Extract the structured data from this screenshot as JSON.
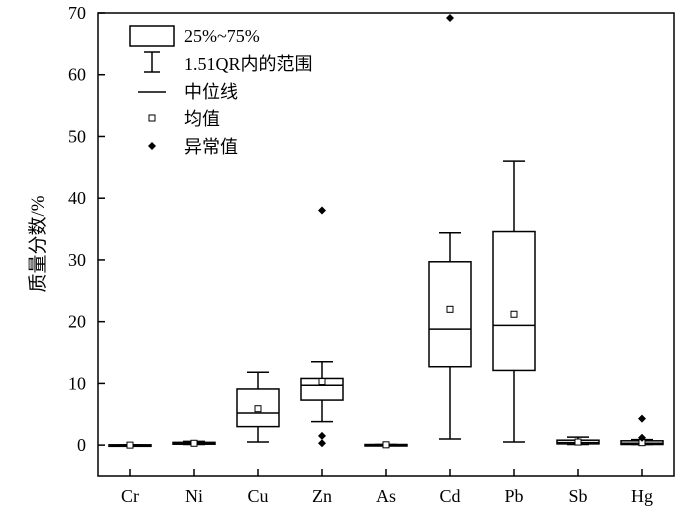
{
  "chart_data": {
    "type": "box",
    "ylabel": "质量分数/%",
    "ylim": [
      -5,
      70
    ],
    "yticks": [
      0,
      10,
      20,
      30,
      40,
      50,
      60,
      70
    ],
    "categories": [
      "Cr",
      "Ni",
      "Cu",
      "Zn",
      "As",
      "Cd",
      "Pb",
      "Sb",
      "Hg"
    ],
    "boxes": [
      {
        "min": 0.0,
        "q1": 0.0,
        "median": 0.0,
        "q3": 0.05,
        "max": 0.05,
        "mean": 0.0,
        "outliers": []
      },
      {
        "min": 0.1,
        "q1": 0.15,
        "median": 0.3,
        "q3": 0.45,
        "max": 0.6,
        "mean": 0.3,
        "outliers": []
      },
      {
        "min": 0.5,
        "q1": 3.0,
        "median": 5.2,
        "q3": 9.1,
        "max": 11.8,
        "mean": 5.9,
        "outliers": []
      },
      {
        "min": 3.8,
        "q1": 7.3,
        "median": 9.7,
        "q3": 10.8,
        "max": 13.5,
        "mean": 10.3,
        "outliers": [
          38.0,
          1.5,
          0.3
        ]
      },
      {
        "min": 0.0,
        "q1": 0.0,
        "median": 0.05,
        "q3": 0.1,
        "max": 0.1,
        "mean": 0.05,
        "outliers": []
      },
      {
        "min": 1.0,
        "q1": 12.7,
        "median": 18.8,
        "q3": 29.7,
        "max": 34.4,
        "mean": 22.0,
        "outliers": [
          69.2
        ]
      },
      {
        "min": 0.5,
        "q1": 12.1,
        "median": 19.4,
        "q3": 34.6,
        "max": 46.0,
        "mean": 21.2,
        "outliers": []
      },
      {
        "min": 0.1,
        "q1": 0.2,
        "median": 0.4,
        "q3": 0.8,
        "max": 1.3,
        "mean": 0.5,
        "outliers": []
      },
      {
        "min": 0.1,
        "q1": 0.1,
        "median": 0.3,
        "q3": 0.7,
        "max": 0.9,
        "mean": 0.4,
        "outliers": [
          4.3,
          1.2
        ]
      }
    ],
    "legend": {
      "position": "top-left",
      "entries": [
        "25%~75%",
        "1.51QR内的范围",
        "中位线",
        "均值",
        "异常值"
      ]
    }
  }
}
